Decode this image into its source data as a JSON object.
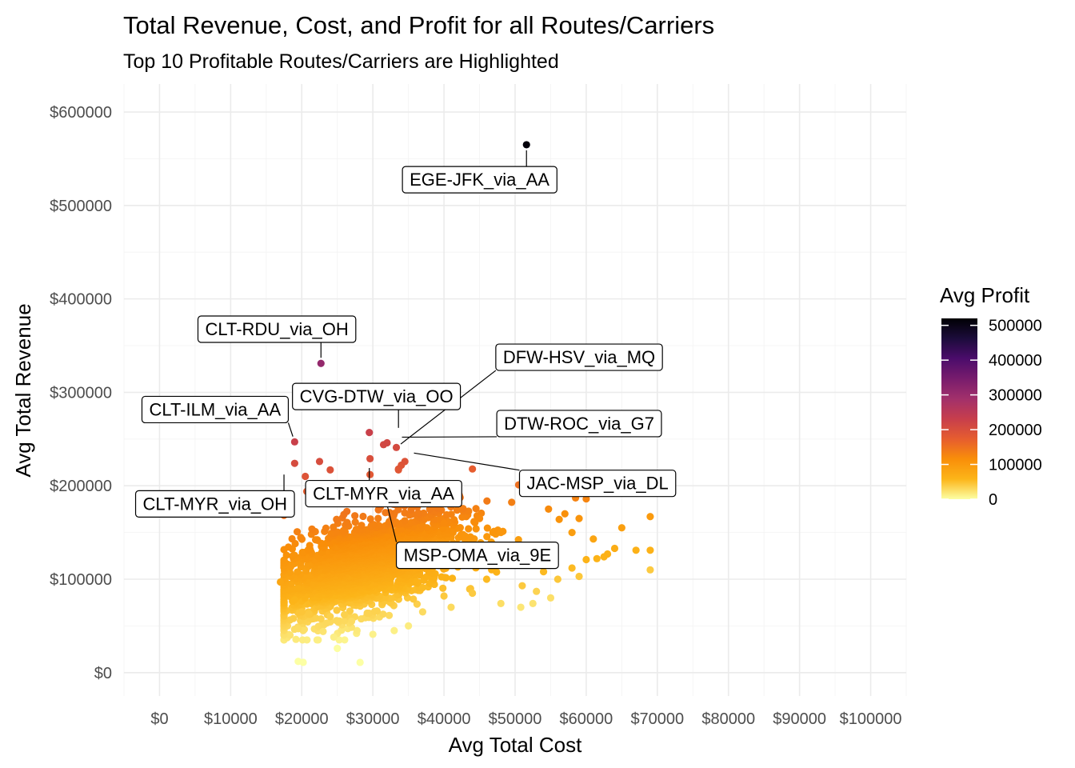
{
  "colors": {
    "scale": [
      "#fcffa4",
      "#fcb519",
      "#f98e09",
      "#e65d2f",
      "#c73e4c",
      "#a2306b",
      "#781c6d",
      "#4b0c6b",
      "#1c0c3b",
      "#000004"
    ],
    "leader": "#000000",
    "label_border": "#000000",
    "label_fill": "#ffffff"
  },
  "chart_data": {
    "type": "scatter",
    "title": "Total Revenue, Cost, and Profit for all Routes/Carriers",
    "subtitle": "Top 10 Profitable Routes/Carriers are Highlighted",
    "xlabel": "Avg Total Cost",
    "ylabel": "Avg Total Revenue",
    "xlim": [
      -5000,
      105000
    ],
    "ylim": [
      -25000,
      630000
    ],
    "x_ticks": [
      0,
      10000,
      20000,
      30000,
      40000,
      50000,
      60000,
      70000,
      80000,
      90000,
      100000
    ],
    "x_tick_labels": [
      "$0",
      "$10000",
      "$20000",
      "$30000",
      "$40000",
      "$50000",
      "$60000",
      "$70000",
      "$80000",
      "$90000",
      "$100000"
    ],
    "y_ticks": [
      0,
      100000,
      200000,
      300000,
      400000,
      500000,
      600000
    ],
    "y_tick_labels": [
      "$0",
      "$100000",
      "$200000",
      "$300000",
      "$400000",
      "$500000",
      "$600000"
    ],
    "grid": true,
    "legend": {
      "title": "Avg Profit",
      "placement": "right",
      "range": [
        0,
        520000
      ],
      "ticks": [
        0,
        100000,
        200000,
        300000,
        400000,
        500000
      ],
      "tick_labels": [
        "0",
        "100000",
        "200000",
        "300000",
        "400000",
        "500000"
      ]
    },
    "cluster": {
      "center": [
        29000,
        115000
      ],
      "spread": [
        6500,
        28000
      ],
      "count": 2200
    },
    "points": [
      [
        51600,
        565000
      ],
      [
        22700,
        331000
      ],
      [
        29500,
        257000
      ],
      [
        19000,
        247000
      ],
      [
        32000,
        246000
      ],
      [
        31500,
        244000
      ],
      [
        33300,
        241000
      ],
      [
        34500,
        226000
      ],
      [
        34000,
        222000
      ],
      [
        33600,
        218000
      ],
      [
        22500,
        226000
      ],
      [
        29600,
        229000
      ],
      [
        19000,
        224000
      ],
      [
        24000,
        217000
      ],
      [
        33600,
        217000
      ],
      [
        44000,
        218000
      ],
      [
        20500,
        210000
      ],
      [
        29600,
        212000
      ],
      [
        50500,
        201000
      ],
      [
        29000,
        193000
      ],
      [
        20700,
        194000
      ],
      [
        22700,
        185000
      ],
      [
        25000,
        194000
      ],
      [
        36000,
        195000
      ],
      [
        58500,
        187000
      ],
      [
        61000,
        196000
      ],
      [
        62000,
        201000
      ],
      [
        63000,
        202000
      ],
      [
        64000,
        205000
      ],
      [
        57000,
        194000
      ],
      [
        60000,
        186000
      ],
      [
        54700,
        175000
      ],
      [
        56200,
        164000
      ],
      [
        57000,
        170000
      ],
      [
        59000,
        165000
      ],
      [
        69000,
        167000
      ],
      [
        65000,
        155000
      ],
      [
        58000,
        150000
      ],
      [
        61000,
        143000
      ],
      [
        64000,
        133000
      ],
      [
        63000,
        127000
      ],
      [
        62500,
        124000
      ],
      [
        61500,
        122000
      ],
      [
        60000,
        121000
      ],
      [
        67000,
        131000
      ],
      [
        69000,
        131000
      ],
      [
        69000,
        110000
      ],
      [
        58000,
        112000
      ],
      [
        54000,
        108000
      ],
      [
        56000,
        100000
      ],
      [
        59000,
        103000
      ],
      [
        51000,
        93000
      ],
      [
        53000,
        87000
      ],
      [
        55000,
        80000
      ],
      [
        50800,
        70000
      ],
      [
        52500,
        74000
      ],
      [
        48000,
        74000
      ],
      [
        40000,
        82000
      ],
      [
        37000,
        91000
      ],
      [
        46000,
        100000
      ],
      [
        17000,
        97000
      ],
      [
        19500,
        90000
      ],
      [
        19000,
        78000
      ],
      [
        20000,
        65000
      ],
      [
        21000,
        63000
      ],
      [
        19500,
        47000
      ],
      [
        20200,
        45000
      ],
      [
        23500,
        53000
      ],
      [
        24000,
        60000
      ],
      [
        26000,
        62000
      ],
      [
        27000,
        55000
      ],
      [
        24500,
        38000
      ],
      [
        23000,
        44000
      ],
      [
        25000,
        26000
      ],
      [
        19500,
        12000
      ],
      [
        20200,
        11000
      ],
      [
        28200,
        11000
      ],
      [
        30000,
        41000
      ],
      [
        33000,
        45000
      ],
      [
        35000,
        50000
      ],
      [
        37000,
        65000
      ],
      [
        41000,
        70000
      ],
      [
        44000,
        85000
      ],
      [
        43000,
        146000
      ],
      [
        40000,
        160000
      ],
      [
        38000,
        175000
      ],
      [
        45000,
        165000
      ],
      [
        48000,
        150000
      ],
      [
        50000,
        135000
      ],
      [
        52000,
        120000
      ]
    ],
    "annotations": [
      {
        "text": "EGE-JFK_via_AA",
        "point": [
          51600,
          565000
        ],
        "label": [
          45000,
          528000
        ]
      },
      {
        "text": "CLT-RDU_via_OH",
        "point": [
          22700,
          331000
        ],
        "label": [
          16500,
          368000
        ]
      },
      {
        "text": "DFW-HSV_via_MQ",
        "point": [
          33300,
          241000
        ],
        "label": [
          59000,
          338000
        ]
      },
      {
        "text": "CVG-DTW_via_OO",
        "point": [
          33600,
          256000
        ],
        "label": [
          30500,
          296000
        ]
      },
      {
        "text": "CLT-ILM_via_AA",
        "point": [
          19000,
          247000
        ],
        "label": [
          7800,
          282000
        ]
      },
      {
        "text": "DTW-ROC_via_G7",
        "point": [
          33300,
          252000
        ],
        "label": [
          59000,
          267000
        ]
      },
      {
        "text": "JAC-MSP_via_DL",
        "point": [
          35000,
          236000
        ],
        "label": [
          61600,
          203000
        ]
      },
      {
        "text": "CLT-MYR_via_OH",
        "point": [
          17500,
          218000
        ],
        "label": [
          7800,
          181000
        ]
      },
      {
        "text": "CLT-MYR_via_AA",
        "point": [
          29500,
          225000
        ],
        "label": [
          31500,
          192000
        ]
      },
      {
        "text": "MSP-OMA_via_9E",
        "point": [
          31000,
          210000
        ],
        "label": [
          44700,
          126000
        ]
      }
    ]
  }
}
